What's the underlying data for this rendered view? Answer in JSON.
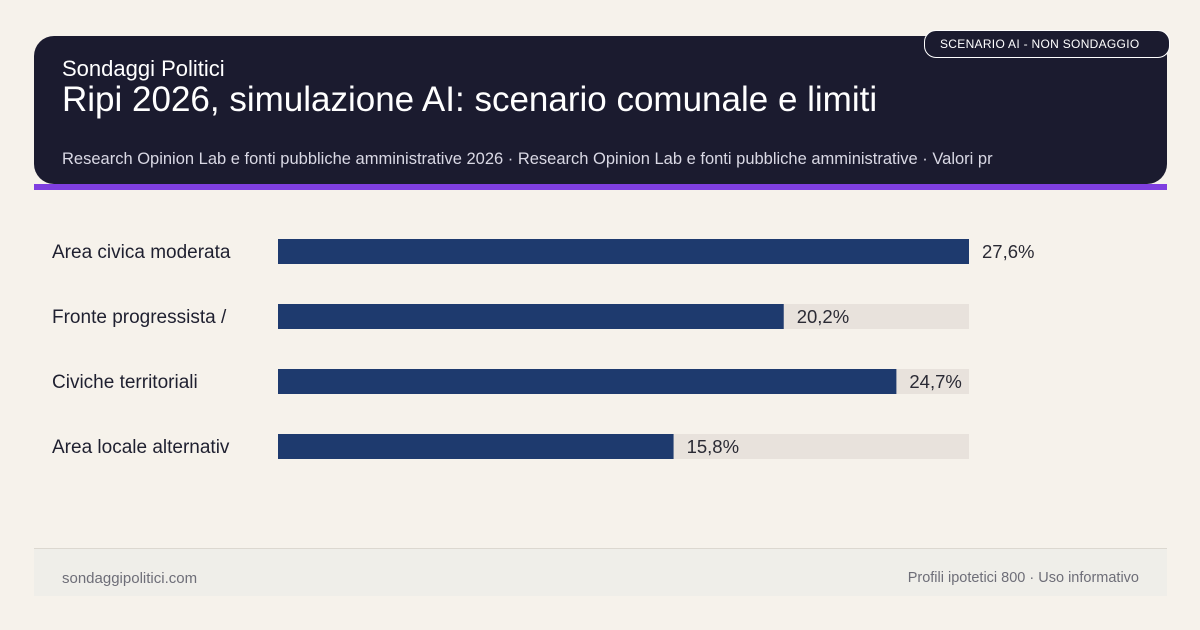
{
  "header": {
    "brand": "Sondaggi Politici",
    "title": "Ripi 2026, simulazione AI: scenario comunale e limiti",
    "subtitle": "Research Opinion Lab e fonti pubbliche amministrative 2026 · Research Opinion Lab e fonti pubbliche amministrative · Valori pr",
    "badge": "SCENARIO AI - NON SONDAGGIO"
  },
  "colors": {
    "header_bg": "#1b1b2f",
    "accent": "#7f3fe0",
    "bar": "#1e3a6e",
    "track": "#e8e2dc",
    "background": "#f6f2eb"
  },
  "chart_data": {
    "type": "bar",
    "orientation": "horizontal",
    "categories": [
      "Area civica moderata",
      "Fronte progressista /",
      "Civiche territoriali",
      "Area locale alternativ"
    ],
    "values": [
      27.6,
      20.2,
      24.7,
      15.8
    ],
    "value_labels": [
      "27,6%",
      "20,2%",
      "24,7%",
      "15,8%"
    ],
    "xlim": [
      0,
      27.6
    ],
    "grid": false,
    "legend": "none"
  },
  "footer": {
    "site": "sondaggipolitici.com",
    "note": "Profili ipotetici 800 · Uso informativo"
  }
}
